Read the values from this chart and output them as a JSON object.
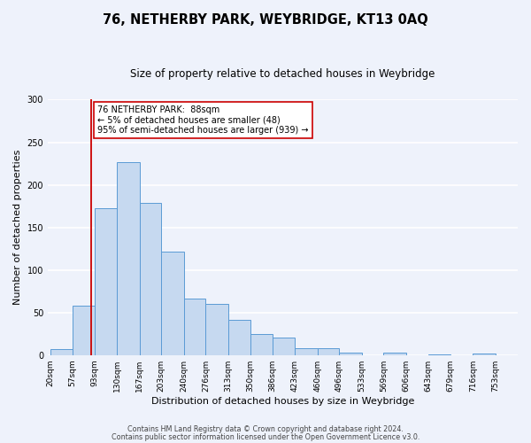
{
  "title": "76, NETHERBY PARK, WEYBRIDGE, KT13 0AQ",
  "subtitle": "Size of property relative to detached houses in Weybridge",
  "xlabel": "Distribution of detached houses by size in Weybridge",
  "ylabel": "Number of detached properties",
  "bin_labels": [
    "20sqm",
    "57sqm",
    "93sqm",
    "130sqm",
    "167sqm",
    "203sqm",
    "240sqm",
    "276sqm",
    "313sqm",
    "350sqm",
    "386sqm",
    "423sqm",
    "460sqm",
    "496sqm",
    "533sqm",
    "569sqm",
    "606sqm",
    "643sqm",
    "679sqm",
    "716sqm",
    "753sqm"
  ],
  "bin_edges": [
    20,
    57,
    93,
    130,
    167,
    203,
    240,
    276,
    313,
    350,
    386,
    423,
    460,
    496,
    533,
    569,
    606,
    643,
    679,
    716,
    753,
    790
  ],
  "bar_heights": [
    7,
    58,
    172,
    227,
    179,
    122,
    66,
    60,
    41,
    25,
    20,
    8,
    8,
    3,
    0,
    3,
    0,
    1,
    0,
    2,
    0
  ],
  "bar_color": "#c6d9f0",
  "bar_edge_color": "#5b9bd5",
  "vline_x": 88,
  "vline_color": "#cc0000",
  "annotation_line1": "76 NETHERBY PARK:  88sqm",
  "annotation_line2": "← 5% of detached houses are smaller (48)",
  "annotation_line3": "95% of semi-detached houses are larger (939) →",
  "annotation_box_color": "#ffffff",
  "annotation_box_edge": "#cc0000",
  "ylim": [
    0,
    300
  ],
  "yticks": [
    0,
    50,
    100,
    150,
    200,
    250,
    300
  ],
  "footer_line1": "Contains HM Land Registry data © Crown copyright and database right 2024.",
  "footer_line2": "Contains public sector information licensed under the Open Government Licence v3.0.",
  "background_color": "#eef2fb",
  "grid_color": "#ffffff",
  "title_fontsize": 10.5,
  "subtitle_fontsize": 8.5,
  "axis_label_fontsize": 8,
  "tick_fontsize": 6.5,
  "footer_fontsize": 5.8
}
